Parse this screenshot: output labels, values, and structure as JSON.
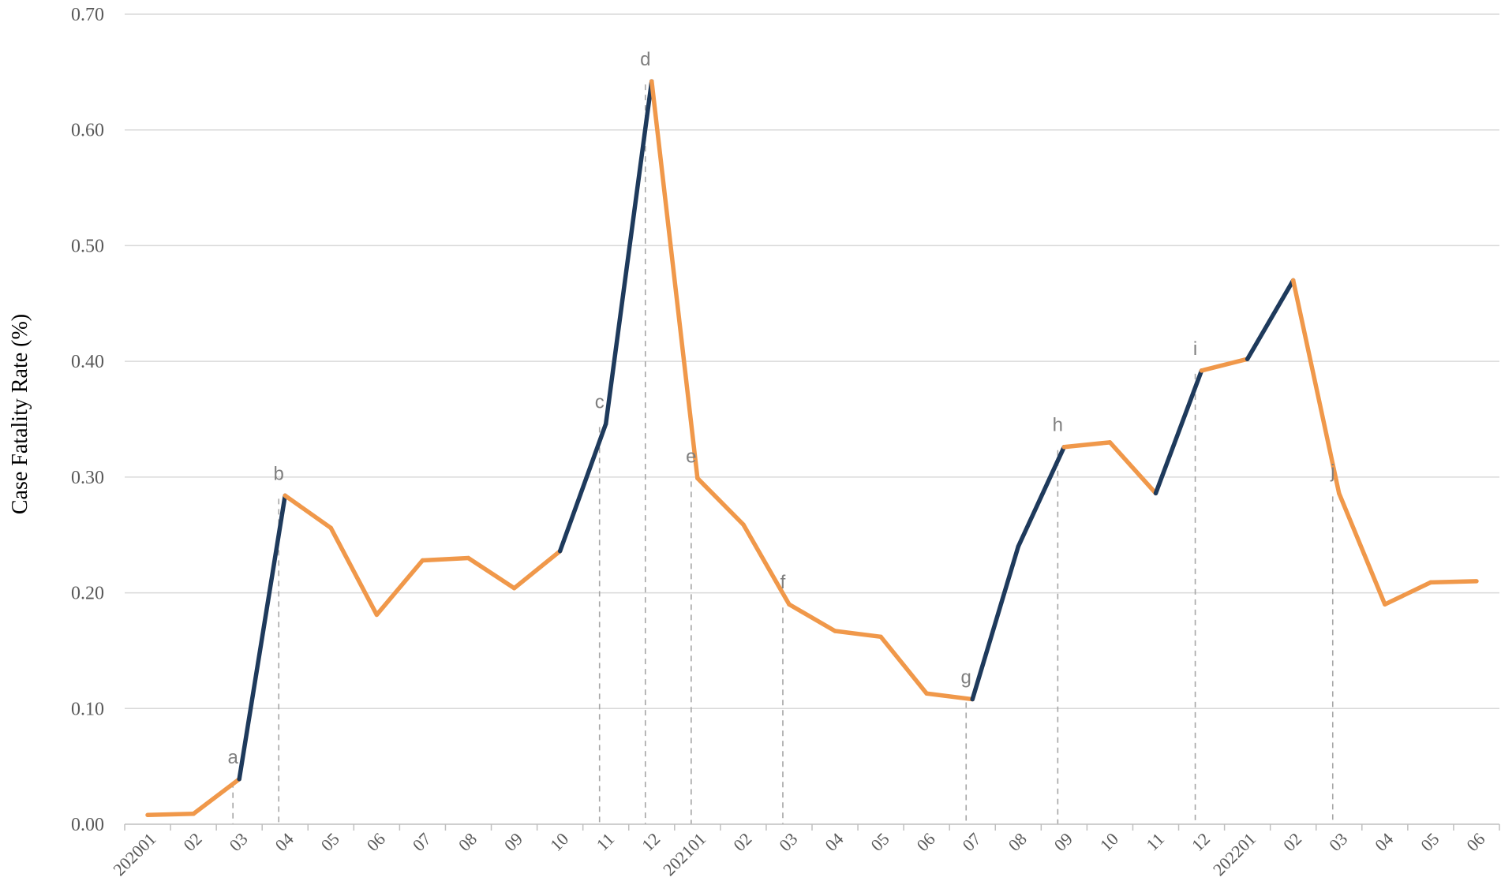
{
  "chart_data": {
    "type": "line",
    "title": "",
    "xlabel": "",
    "ylabel": "Case Fatality Rate (%)",
    "ylim": [
      0,
      0.7
    ],
    "yticks": [
      "0.00",
      "0.10",
      "0.20",
      "0.30",
      "0.40",
      "0.50",
      "0.60",
      "0.70"
    ],
    "grid": "horizontal",
    "categories": [
      "202001",
      "02",
      "03",
      "04",
      "05",
      "06",
      "07",
      "08",
      "09",
      "10",
      "11",
      "12",
      "202101",
      "02",
      "03",
      "04",
      "05",
      "06",
      "07",
      "08",
      "09",
      "10",
      "11",
      "12",
      "202201",
      "02",
      "03",
      "04",
      "05",
      "06"
    ],
    "values": [
      0.008,
      0.009,
      0.039,
      0.284,
      0.256,
      0.181,
      0.228,
      0.23,
      0.204,
      0.236,
      0.346,
      0.642,
      0.299,
      0.259,
      0.19,
      0.167,
      0.162,
      0.113,
      0.108,
      0.24,
      0.326,
      0.33,
      0.286,
      0.392,
      0.402,
      0.47,
      0.286,
      0.19,
      0.209,
      0.21
    ],
    "colors": {
      "base": "#f0984a",
      "highlight": "#1e3a5c"
    },
    "highlight_segments": [
      [
        2,
        3
      ],
      [
        9,
        11
      ],
      [
        18,
        20
      ],
      [
        22,
        23
      ],
      [
        24,
        25
      ]
    ],
    "annotations": [
      {
        "label": "a",
        "index": 2
      },
      {
        "label": "b",
        "index": 3
      },
      {
        "label": "c",
        "index": 10
      },
      {
        "label": "d",
        "index": 11
      },
      {
        "label": "e",
        "index": 12
      },
      {
        "label": "f",
        "index": 14
      },
      {
        "label": "g",
        "index": 18
      },
      {
        "label": "h",
        "index": 20
      },
      {
        "label": "i",
        "index": 23
      },
      {
        "label": "j",
        "index": 26
      }
    ]
  }
}
